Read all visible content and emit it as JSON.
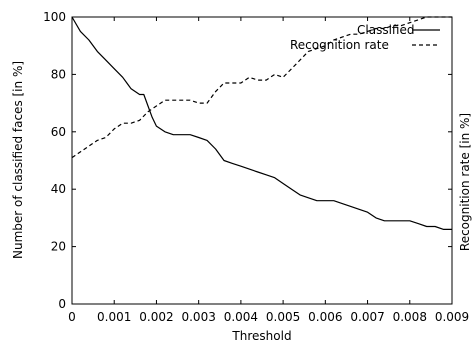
{
  "chart_data": {
    "type": "line",
    "title": "",
    "xlabel": "Threshold",
    "ylabel": "Number of classified faces [in %]",
    "y2label": "Recognition rate [in %]",
    "xlim": [
      0,
      0.009
    ],
    "ylim": [
      0,
      100
    ],
    "xticks": [
      0,
      0.001,
      0.002,
      0.003,
      0.004,
      0.005,
      0.006,
      0.007,
      0.008,
      0.009
    ],
    "xtick_labels": [
      "0",
      "0.001",
      "0.002",
      "0.003",
      "0.004",
      "0.005",
      "0.006",
      "0.007",
      "0.008",
      "0.009"
    ],
    "yticks": [
      0,
      20,
      40,
      60,
      80,
      100
    ],
    "ytick_labels": [
      "0",
      "20",
      "40",
      "60",
      "80",
      "100"
    ],
    "grid": false,
    "legend": "top-right",
    "series": [
      {
        "name": "Classified",
        "style": "solid",
        "x": [
          0,
          0.0002,
          0.0004,
          0.0006,
          0.0008,
          0.001,
          0.0012,
          0.0014,
          0.0016,
          0.0017,
          0.0018,
          0.0019,
          0.002,
          0.0022,
          0.0024,
          0.0026,
          0.0028,
          0.003,
          0.0032,
          0.0034,
          0.0036,
          0.0038,
          0.004,
          0.0042,
          0.0044,
          0.0046,
          0.0048,
          0.005,
          0.0052,
          0.0054,
          0.0056,
          0.0058,
          0.006,
          0.0062,
          0.0064,
          0.0066,
          0.0068,
          0.007,
          0.0072,
          0.0074,
          0.0076,
          0.0078,
          0.008,
          0.0082,
          0.0084,
          0.0086,
          0.0088,
          0.009
        ],
        "y": [
          100,
          95,
          92,
          88,
          85,
          82,
          79,
          75,
          73,
          73,
          69,
          65,
          62,
          60,
          59,
          59,
          59,
          58,
          57,
          54,
          50,
          49,
          48,
          47,
          46,
          45,
          44,
          42,
          40,
          38,
          37,
          36,
          36,
          36,
          35,
          34,
          33,
          32,
          30,
          29,
          29,
          29,
          29,
          28,
          27,
          27,
          26,
          26
        ]
      },
      {
        "name": "Recognition rate",
        "style": "dashed",
        "x": [
          0,
          0.0002,
          0.0004,
          0.0006,
          0.0008,
          0.001,
          0.0012,
          0.0014,
          0.0016,
          0.0018,
          0.002,
          0.0022,
          0.0024,
          0.0026,
          0.0028,
          0.003,
          0.0032,
          0.0034,
          0.0036,
          0.0038,
          0.004,
          0.0042,
          0.0044,
          0.0046,
          0.0048,
          0.005,
          0.0052,
          0.0054,
          0.0056,
          0.0058,
          0.006,
          0.0062,
          0.0064,
          0.0066,
          0.0068,
          0.007,
          0.0072,
          0.0074,
          0.0076,
          0.0078,
          0.008,
          0.0082,
          0.0084,
          0.0086,
          0.0088,
          0.009
        ],
        "y": [
          51,
          53,
          55,
          57,
          58,
          61,
          63,
          63,
          64,
          67,
          69,
          71,
          71,
          71,
          71,
          70,
          70,
          74,
          77,
          77,
          77,
          79,
          78,
          78,
          80,
          79,
          82,
          85,
          88,
          89,
          90,
          92,
          93,
          94,
          94,
          95,
          96,
          96,
          97,
          97,
          98,
          99,
          100,
          100,
          100,
          100
        ]
      }
    ]
  }
}
